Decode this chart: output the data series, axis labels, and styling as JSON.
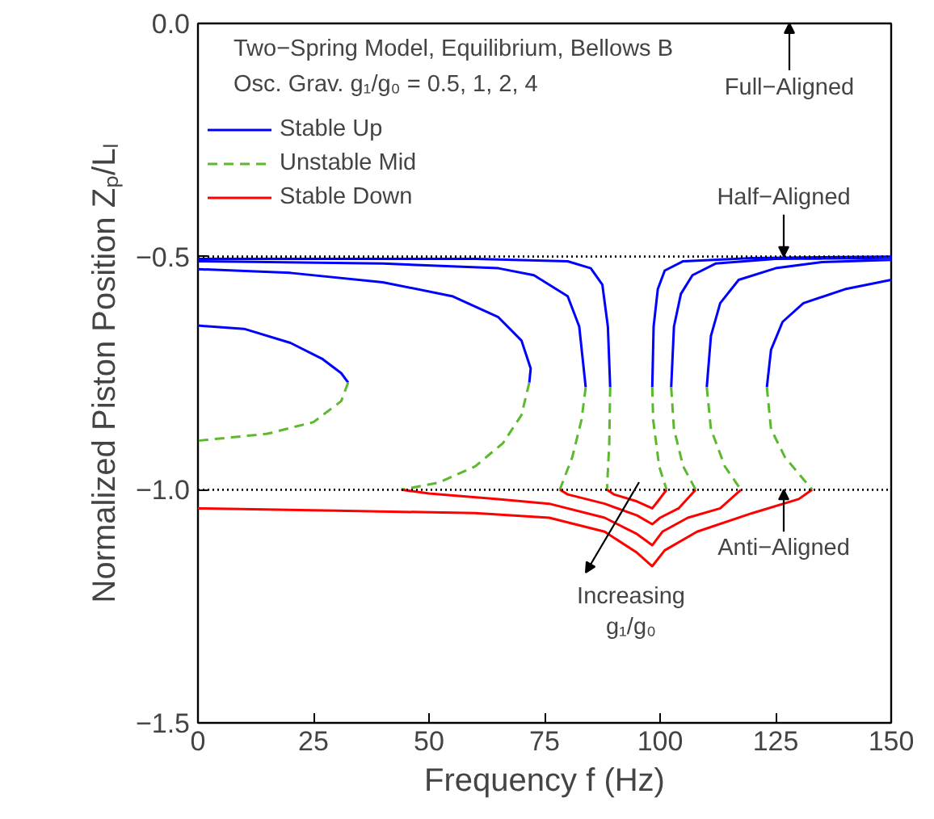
{
  "chart_data": {
    "type": "line",
    "title": "Two−Spring Model, Equilibrium, Bellows B",
    "subtitle": "Osc. Grav. g₁/g₀ = 0.5, 1, 2, 4",
    "xlabel": "Frequency f (Hz)",
    "ylabel": "Normalized Piston Position Zₚ/Lₗ",
    "xlim": [
      0,
      150
    ],
    "ylim": [
      -1.5,
      0
    ],
    "xticks": [
      0,
      25,
      50,
      75,
      100,
      125,
      150
    ],
    "yticks": [
      {
        "value": -1.5,
        "label": "−1.5"
      },
      {
        "value": -1.0,
        "label": "−1.0"
      },
      {
        "value": -0.5,
        "label": "−0.5"
      },
      {
        "value": 0,
        "label": "0.0"
      }
    ],
    "grid": false,
    "legend": "top left",
    "series": [
      {
        "name": "Stable Up",
        "color": "#0000ff",
        "line_style": "solid",
        "x": [
          0,
          10,
          20,
          27,
          31,
          32.5,
          null,
          0,
          20,
          40,
          55,
          65,
          70,
          72,
          71.7,
          null,
          0,
          40,
          65,
          72.7,
          80,
          82.5,
          83.9,
          null,
          0,
          60,
          80,
          85,
          87.5,
          88.7,
          89.2,
          null,
          98.3,
          98.6,
          99.5,
          101,
          105,
          120,
          150,
          null,
          102.4,
          103,
          104.5,
          107,
          112,
          125,
          150,
          null,
          110.1,
          111,
          113,
          117,
          125,
          135,
          150,
          null,
          123.1,
          124,
          126.5,
          131,
          140,
          150
        ],
        "values": [
          -0.648,
          -0.655,
          -0.685,
          -0.72,
          -0.75,
          -0.77,
          null,
          -0.527,
          -0.535,
          -0.555,
          -0.585,
          -0.63,
          -0.68,
          -0.74,
          -0.77,
          null,
          -0.51,
          -0.515,
          -0.525,
          -0.54,
          -0.585,
          -0.65,
          -0.78,
          null,
          -0.505,
          -0.505,
          -0.51,
          -0.525,
          -0.56,
          -0.65,
          -0.78,
          null,
          -0.78,
          -0.65,
          -0.57,
          -0.53,
          -0.51,
          -0.503,
          -0.5,
          null,
          -0.78,
          -0.65,
          -0.58,
          -0.54,
          -0.515,
          -0.505,
          -0.503,
          null,
          -0.78,
          -0.67,
          -0.6,
          -0.55,
          -0.525,
          -0.512,
          -0.507,
          null,
          -0.78,
          -0.7,
          -0.64,
          -0.6,
          -0.57,
          -0.55
        ]
      },
      {
        "name": "Unstable Mid",
        "color": "#5cb82e",
        "line_style": "dashed",
        "x": [
          32.5,
          31,
          25,
          15,
          0,
          null,
          71.7,
          70,
          66,
          60,
          52,
          44,
          null,
          83.9,
          83,
          81,
          78.3,
          null,
          89.2,
          89,
          88.5,
          null,
          98.3,
          98.5,
          99.8,
          101.4,
          null,
          102.4,
          103,
          105,
          107.7,
          null,
          110.1,
          111,
          114,
          117.5,
          null,
          123.1,
          124,
          127,
          132.9
        ],
        "values": [
          -0.77,
          -0.81,
          -0.855,
          -0.88,
          -0.895,
          null,
          -0.77,
          -0.84,
          -0.9,
          -0.95,
          -0.985,
          -1.0,
          null,
          -0.78,
          -0.85,
          -0.93,
          -1.0,
          null,
          -0.78,
          -0.9,
          -1.0,
          null,
          -0.78,
          -0.85,
          -0.95,
          -1.0,
          null,
          -0.78,
          -0.87,
          -0.95,
          -1.0,
          null,
          -0.78,
          -0.87,
          -0.95,
          -1.0,
          null,
          -0.78,
          -0.87,
          -0.93,
          -1.0
        ]
      },
      {
        "name": "Stable Down",
        "color": "#ff0000",
        "line_style": "solid",
        "x": [
          88.5,
          90,
          95,
          98.3,
          99.5,
          101.4,
          null,
          78.3,
          80,
          88,
          95,
          98.3,
          100,
          104,
          107.7,
          null,
          44,
          50,
          65,
          76,
          88,
          95,
          98.3,
          100.5,
          106,
          113,
          117.5,
          null,
          0,
          30,
          60,
          76,
          88,
          95,
          98.3,
          101,
          108,
          120,
          130,
          132.9
        ],
        "values": [
          -1.0,
          -1.01,
          -1.025,
          -1.04,
          -1.025,
          -1.0,
          null,
          -1.0,
          -1.01,
          -1.03,
          -1.055,
          -1.074,
          -1.06,
          -1.04,
          -1.0,
          null,
          -1.0,
          -1.008,
          -1.02,
          -1.03,
          -1.06,
          -1.095,
          -1.119,
          -1.09,
          -1.06,
          -1.04,
          -1.0,
          null,
          -1.04,
          -1.045,
          -1.05,
          -1.06,
          -1.09,
          -1.135,
          -1.164,
          -1.13,
          -1.09,
          -1.05,
          -1.02,
          -1.0
        ]
      }
    ],
    "ref_lines": [
      {
        "axis": "y",
        "value": -0.5,
        "label": "Half−Aligned",
        "color": "#000000",
        "line_style": "dotted"
      },
      {
        "axis": "y",
        "value": -1.0,
        "label": "Anti−Aligned",
        "color": "#000000",
        "line_style": "dotted"
      }
    ],
    "annotations": [
      "Full−Aligned",
      "Increasing\ng₁/g₀"
    ]
  }
}
